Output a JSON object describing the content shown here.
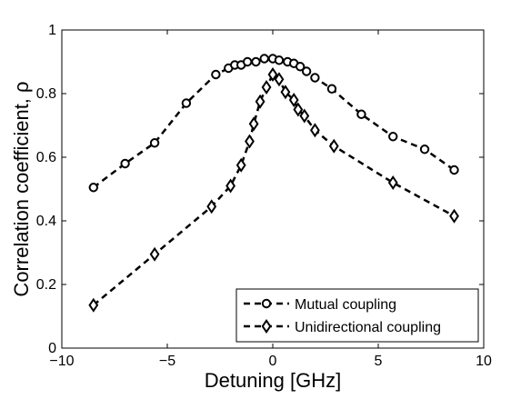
{
  "chart_data": {
    "type": "line",
    "xlabel": "Detuning [GHz]",
    "ylabel": "Correlation coefficient, ρ",
    "xlim": [
      -10,
      10
    ],
    "ylim": [
      0,
      1
    ],
    "xticks": [
      -10,
      -5,
      0,
      5,
      10
    ],
    "yticks": [
      0,
      0.2,
      0.4,
      0.6,
      0.8,
      1
    ],
    "xtick_labels": [
      "−10",
      "−5",
      "0",
      "5",
      "10"
    ],
    "ytick_labels": [
      "0",
      "0.2",
      "0.4",
      "0.6",
      "0.8",
      "1"
    ],
    "grid": false,
    "legend_position": "bottom-right",
    "series": [
      {
        "name": "Mutual coupling",
        "marker": "circle",
        "line": "dashed",
        "color": "#000000",
        "x": [
          -8.5,
          -7.0,
          -5.6,
          -4.1,
          -2.7,
          -2.1,
          -1.8,
          -1.5,
          -1.2,
          -0.8,
          -0.4,
          0.0,
          0.3,
          0.7,
          1.0,
          1.3,
          1.6,
          2.0,
          2.8,
          4.2,
          5.7,
          7.2,
          8.6
        ],
        "y": [
          0.505,
          0.58,
          0.645,
          0.77,
          0.86,
          0.88,
          0.89,
          0.89,
          0.9,
          0.9,
          0.91,
          0.91,
          0.905,
          0.9,
          0.895,
          0.885,
          0.87,
          0.85,
          0.815,
          0.735,
          0.665,
          0.625,
          0.56
        ]
      },
      {
        "name": "Unidirectional coupling",
        "marker": "diamond",
        "line": "dashed",
        "color": "#000000",
        "x": [
          -8.5,
          -5.6,
          -2.9,
          -2.0,
          -1.5,
          -1.1,
          -0.9,
          -0.6,
          -0.3,
          0.0,
          0.3,
          0.6,
          1.0,
          1.2,
          1.5,
          2.0,
          2.9,
          5.7,
          8.6
        ],
        "y": [
          0.135,
          0.295,
          0.445,
          0.51,
          0.575,
          0.65,
          0.705,
          0.775,
          0.82,
          0.86,
          0.845,
          0.805,
          0.78,
          0.75,
          0.73,
          0.685,
          0.635,
          0.52,
          0.415
        ]
      }
    ]
  }
}
